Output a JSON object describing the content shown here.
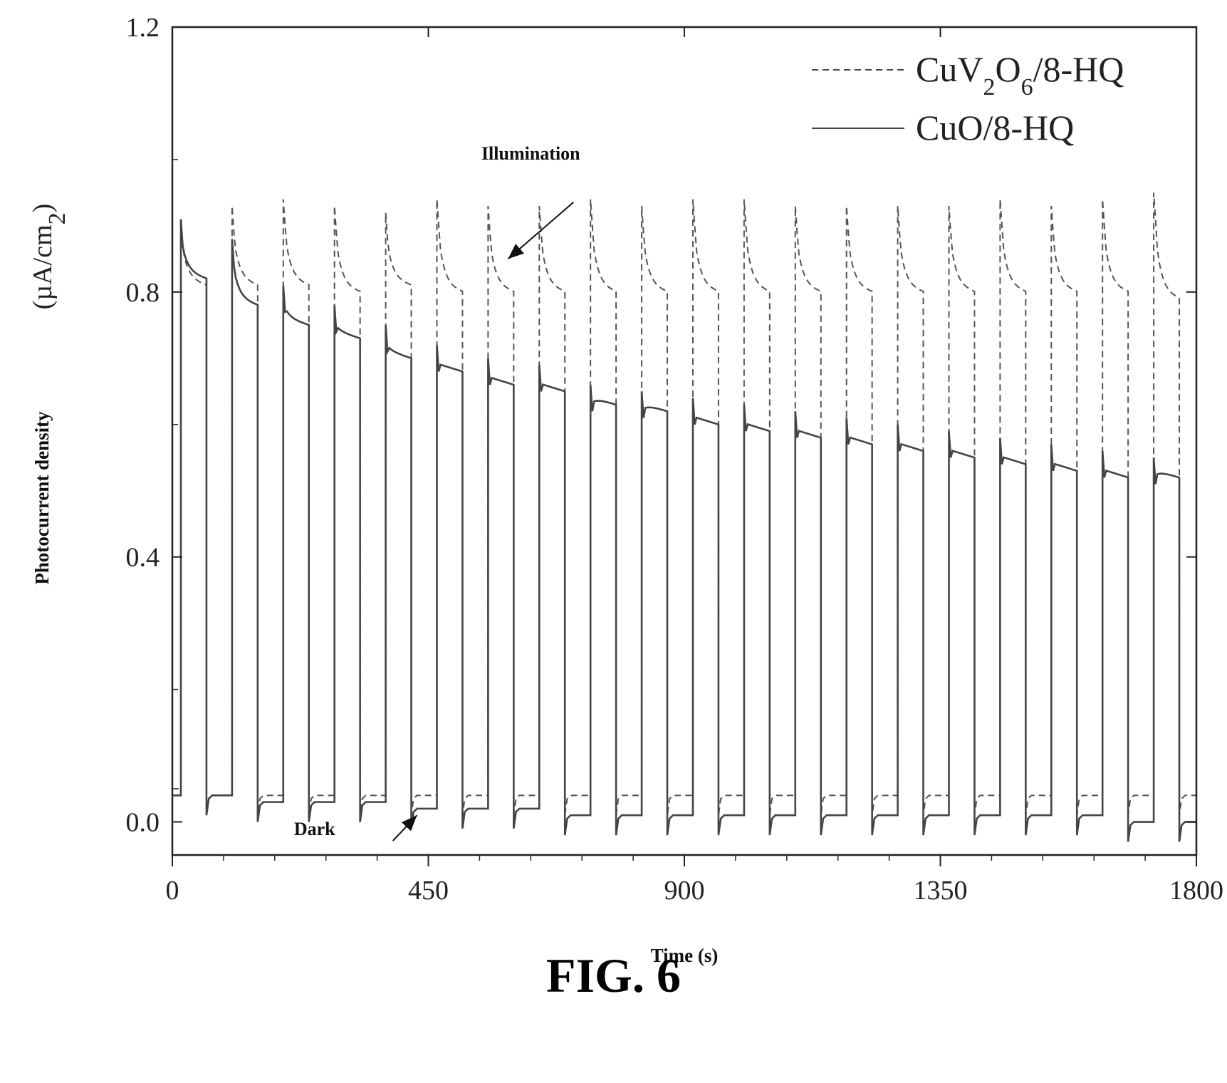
{
  "caption": "FIG. 6",
  "chart_data": {
    "type": "line",
    "xlabel": "Time (s)",
    "ylabel_main": "Photocurrent density",
    "ylabel_unit_parts": [
      "(µA/cm",
      "2",
      ")"
    ],
    "xlim": [
      0,
      1800
    ],
    "ylim": [
      -0.05,
      1.2
    ],
    "x_ticks": [
      0,
      450,
      900,
      1350,
      1800
    ],
    "x_tick_labels": [
      "0",
      "450",
      "900",
      "1350",
      "1800"
    ],
    "y_ticks": [
      0.0,
      0.4,
      0.8,
      1.2
    ],
    "y_tick_labels": [
      "0.0",
      "0.4",
      "0.8",
      "1.2"
    ],
    "legend_position": "top-right",
    "legend": [
      {
        "parts": [
          "CuV",
          "2",
          "O",
          "6",
          "/8-HQ"
        ],
        "style": "dashed"
      },
      {
        "parts": [
          "CuO/8-HQ"
        ],
        "style": "solid"
      }
    ],
    "annotations": [
      {
        "text": "Illumination",
        "x": 630,
        "y": 1.0,
        "arrow_to": [
          590,
          0.85
        ]
      },
      {
        "text": "Dark",
        "x": 250,
        "y": -0.02,
        "arrow_to": [
          430,
          0.01
        ]
      }
    ],
    "series": [
      {
        "style": "dashed",
        "on_times": [
          15,
          105,
          195,
          285,
          375,
          465,
          555,
          645,
          735,
          825,
          915,
          1005,
          1095,
          1185,
          1275,
          1365,
          1455,
          1545,
          1635,
          1725
        ],
        "off_times": [
          60,
          150,
          240,
          330,
          420,
          510,
          600,
          690,
          780,
          870,
          960,
          1050,
          1140,
          1230,
          1320,
          1410,
          1500,
          1590,
          1680,
          1770
        ],
        "peak": [
          0.91,
          0.93,
          0.94,
          0.93,
          0.92,
          0.94,
          0.93,
          0.93,
          0.94,
          0.93,
          0.94,
          0.94,
          0.93,
          0.93,
          0.93,
          0.93,
          0.94,
          0.93,
          0.94,
          0.95
        ],
        "plateau_end": [
          0.81,
          0.81,
          0.81,
          0.8,
          0.81,
          0.8,
          0.8,
          0.8,
          0.8,
          0.8,
          0.8,
          0.8,
          0.8,
          0.8,
          0.8,
          0.8,
          0.8,
          0.8,
          0.8,
          0.79
        ],
        "dark_level": [
          0.05,
          0.04,
          0.04,
          0.04,
          0.04,
          0.04,
          0.04,
          0.04,
          0.04,
          0.04,
          0.04,
          0.04,
          0.04,
          0.04,
          0.04,
          0.04,
          0.04,
          0.04,
          0.04,
          0.04
        ]
      },
      {
        "style": "solid",
        "on_times": [
          15,
          105,
          195,
          285,
          375,
          465,
          555,
          645,
          735,
          825,
          915,
          1005,
          1095,
          1185,
          1275,
          1365,
          1455,
          1545,
          1635,
          1725
        ],
        "off_times": [
          60,
          150,
          240,
          330,
          420,
          510,
          600,
          690,
          780,
          870,
          960,
          1050,
          1140,
          1230,
          1320,
          1410,
          1500,
          1590,
          1680,
          1770
        ],
        "peak": [
          0.91,
          0.88,
          0.81,
          0.78,
          0.75,
          0.72,
          0.7,
          0.69,
          0.66,
          0.65,
          0.64,
          0.63,
          0.62,
          0.61,
          0.6,
          0.59,
          0.58,
          0.57,
          0.56,
          0.55
        ],
        "plateau_end": [
          0.82,
          0.78,
          0.75,
          0.73,
          0.7,
          0.68,
          0.66,
          0.65,
          0.63,
          0.62,
          0.6,
          0.59,
          0.58,
          0.57,
          0.56,
          0.55,
          0.54,
          0.53,
          0.52,
          0.52
        ],
        "dark_level": [
          0.04,
          0.04,
          0.03,
          0.03,
          0.03,
          0.02,
          0.02,
          0.02,
          0.01,
          0.01,
          0.01,
          0.01,
          0.01,
          0.01,
          0.01,
          0.01,
          0.01,
          0.01,
          0.01,
          0.0
        ]
      }
    ]
  }
}
